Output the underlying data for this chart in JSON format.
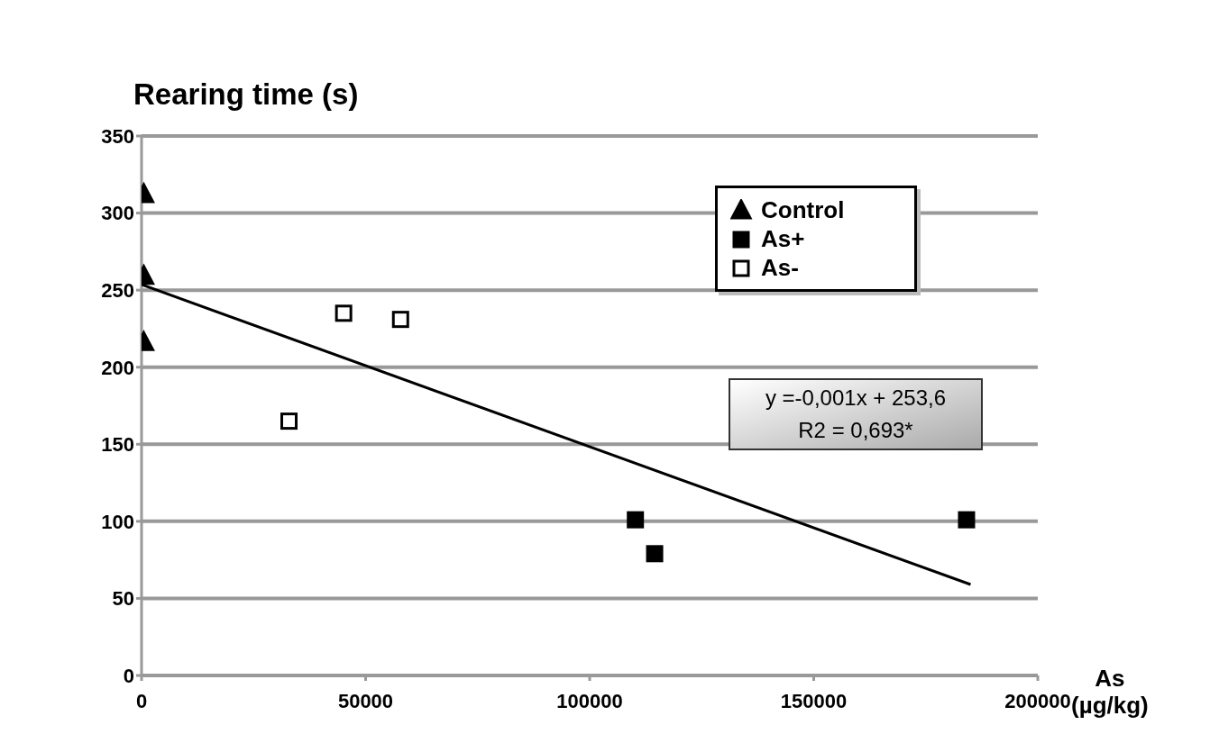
{
  "chart_data": {
    "type": "scatter",
    "title": "Rearing time (s)",
    "xlabel": "As (µg/kg)",
    "xlim": [
      0,
      200000
    ],
    "xticks": [
      0,
      50000,
      100000,
      150000,
      200000
    ],
    "ylim": [
      0,
      350
    ],
    "yticks": [
      0,
      50,
      100,
      150,
      200,
      250,
      300,
      350
    ],
    "grid": "y",
    "legend": "top right",
    "series": [
      {
        "name": "Control",
        "color": "#000000",
        "marker": "triangle",
        "x": [
          500,
          500,
          500
        ],
        "values": [
          312,
          259,
          216
        ]
      },
      {
        "name": "As+",
        "color": "#000000",
        "marker": "square",
        "x": [
          110200,
          114500,
          184100
        ],
        "values": [
          101,
          79,
          101
        ]
      },
      {
        "name": "As-",
        "color": "#ffffff",
        "marker": "square",
        "x": [
          32900,
          45100,
          57800
        ],
        "values": [
          165,
          235,
          231
        ]
      },
      {
        "type": "line",
        "color": "#000000",
        "marker": "none",
        "x": [
          0,
          185000
        ],
        "values": [
          253.6,
          59
        ]
      }
    ],
    "annotations": [
      "y =-0,001x + 253,6",
      "R2 = 0,693*"
    ]
  }
}
